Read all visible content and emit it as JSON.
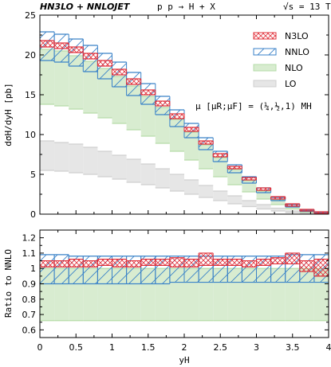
{
  "header": {
    "left": "HN3LO + NNLOJET",
    "process": "p p → H + X",
    "energy": "√s = 13 TeV"
  },
  "annotation": "μ [μR;μF] = (¼,½,1) MH",
  "chart_data": [
    {
      "type": "line",
      "panel": "main",
      "xlabel": "yH",
      "ylabel": "dσH/dyH [pb]",
      "xlim": [
        0,
        4
      ],
      "ylim": [
        0,
        25
      ],
      "yticks": [
        0,
        5,
        10,
        15,
        20,
        25
      ],
      "x_edges": [
        0,
        0.2,
        0.4,
        0.6,
        0.8,
        1.0,
        1.2,
        1.4,
        1.6,
        1.8,
        2.0,
        2.2,
        2.4,
        2.6,
        2.8,
        3.0,
        3.2,
        3.4,
        3.6,
        3.8,
        4.0
      ],
      "legend_position": "top-right",
      "series": [
        {
          "name": "N3LO",
          "color": "#e0303a",
          "style": "cross-hatch",
          "low": [
            21.0,
            20.8,
            20.3,
            19.5,
            18.6,
            17.5,
            16.3,
            15.0,
            13.6,
            12.0,
            10.4,
            8.8,
            7.2,
            5.7,
            4.3,
            3.0,
            1.9,
            1.0,
            0.4,
            0.1
          ],
          "high": [
            21.8,
            21.5,
            21.0,
            20.2,
            19.3,
            18.2,
            17.0,
            15.6,
            14.2,
            12.6,
            10.9,
            9.2,
            7.6,
            6.0,
            4.6,
            3.3,
            2.2,
            1.3,
            0.6,
            0.3
          ]
        },
        {
          "name": "NNLO",
          "color": "#3a82c8",
          "style": "diagonal-hatch",
          "low": [
            19.3,
            19.1,
            18.6,
            17.9,
            17.0,
            16.0,
            14.9,
            13.8,
            12.5,
            11.0,
            9.6,
            8.1,
            6.6,
            5.2,
            3.9,
            2.7,
            1.7,
            0.9,
            0.35,
            0.1
          ],
          "high": [
            22.9,
            22.6,
            22.0,
            21.2,
            20.2,
            19.1,
            17.8,
            16.4,
            14.8,
            13.1,
            11.4,
            9.6,
            7.9,
            6.2,
            4.7,
            3.3,
            2.1,
            1.2,
            0.5,
            0.2
          ]
        },
        {
          "name": "NLO",
          "color": "#7cc46a",
          "style": "fill",
          "low": [
            13.8,
            13.6,
            13.2,
            12.7,
            12.1,
            11.4,
            10.6,
            9.8,
            8.9,
            7.9,
            6.8,
            5.7,
            4.7,
            3.7,
            2.8,
            1.9,
            1.2,
            0.65,
            0.25,
            0.08
          ],
          "high": [
            20.7,
            20.5,
            19.9,
            19.2,
            18.3,
            17.3,
            16.1,
            14.8,
            13.4,
            11.9,
            10.3,
            8.7,
            7.1,
            5.6,
            4.2,
            2.9,
            1.8,
            1.0,
            0.4,
            0.12
          ]
        },
        {
          "name": "LO",
          "color": "#aaaaaa",
          "style": "fill",
          "low": [
            5.5,
            5.4,
            5.2,
            5.0,
            4.7,
            4.4,
            4.0,
            3.7,
            3.3,
            2.9,
            2.5,
            2.1,
            1.7,
            1.3,
            0.95,
            0.65,
            0.4,
            0.2,
            0.08,
            0.02
          ],
          "high": [
            9.2,
            9.0,
            8.8,
            8.4,
            7.9,
            7.4,
            6.9,
            6.3,
            5.7,
            5.0,
            4.3,
            3.6,
            2.9,
            2.3,
            1.7,
            1.2,
            0.75,
            0.4,
            0.17,
            0.05
          ]
        }
      ]
    },
    {
      "type": "line",
      "panel": "ratio",
      "xlabel": "yH",
      "ylabel": "Ratio to NNLO",
      "xlim": [
        0,
        4
      ],
      "ylim": [
        0.55,
        1.25
      ],
      "xticks": [
        0,
        0.5,
        1,
        1.5,
        2,
        2.5,
        3,
        3.5,
        4
      ],
      "yticks": [
        0.6,
        0.7,
        0.8,
        0.9,
        1.0,
        1.1,
        1.2
      ],
      "x_edges": [
        0,
        0.2,
        0.4,
        0.6,
        0.8,
        1.0,
        1.2,
        1.4,
        1.6,
        1.8,
        2.0,
        2.2,
        2.4,
        2.6,
        2.8,
        3.0,
        3.2,
        3.4,
        3.6,
        3.8,
        4.0
      ],
      "series": [
        {
          "name": "N3LO",
          "color": "#e0303a",
          "style": "cross-hatch",
          "low": [
            1.01,
            1.01,
            1.01,
            1.01,
            1.02,
            1.01,
            1.01,
            1.02,
            1.02,
            1.01,
            1.01,
            1.02,
            1.02,
            1.02,
            1.01,
            1.02,
            1.03,
            1.03,
            0.98,
            0.95
          ],
          "high": [
            1.05,
            1.05,
            1.06,
            1.05,
            1.06,
            1.06,
            1.05,
            1.06,
            1.06,
            1.07,
            1.06,
            1.1,
            1.06,
            1.06,
            1.05,
            1.06,
            1.07,
            1.1,
            1.05,
            1.06
          ]
        },
        {
          "name": "NNLO",
          "color": "#3a82c8",
          "style": "diagonal-hatch",
          "low": [
            0.9,
            0.9,
            0.9,
            0.9,
            0.9,
            0.9,
            0.9,
            0.9,
            0.9,
            0.91,
            0.91,
            0.91,
            0.91,
            0.91,
            0.91,
            0.91,
            0.91,
            0.91,
            0.91,
            0.91
          ],
          "high": [
            1.09,
            1.09,
            1.08,
            1.08,
            1.08,
            1.08,
            1.08,
            1.08,
            1.08,
            1.08,
            1.08,
            1.08,
            1.08,
            1.08,
            1.08,
            1.08,
            1.08,
            1.09,
            1.09,
            1.09
          ]
        },
        {
          "name": "NLO",
          "color": "#7cc46a",
          "style": "fill",
          "low": [
            0.66,
            0.66,
            0.66,
            0.66,
            0.66,
            0.66,
            0.66,
            0.66,
            0.66,
            0.66,
            0.66,
            0.66,
            0.66,
            0.66,
            0.66,
            0.66,
            0.66,
            0.66,
            0.66,
            0.66
          ],
          "high": [
            1.0,
            1.0,
            1.0,
            1.0,
            1.0,
            1.0,
            1.0,
            1.0,
            1.0,
            1.0,
            1.0,
            1.0,
            1.0,
            1.0,
            1.0,
            1.0,
            1.0,
            1.0,
            1.0,
            1.0
          ]
        }
      ]
    }
  ]
}
